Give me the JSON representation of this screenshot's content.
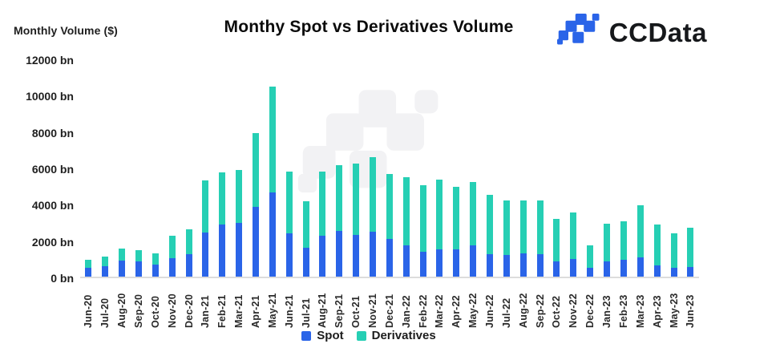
{
  "header": {
    "y_axis_title": "Monthly Volume ($)",
    "title": "Monthy Spot vs Derivatives Volume",
    "brand": "CCData"
  },
  "colors": {
    "spot_blue": "#2a64e8",
    "derivatives_teal": "#26cfb4",
    "axis_line": "#dcdcdc",
    "watermark_gray": "#f2f2f4",
    "logo_blue": "#2a64e8",
    "title_black": "#0b0b0b"
  },
  "legend": {
    "items": [
      {
        "label": "Spot",
        "color": "#2a64e8"
      },
      {
        "label": "Derivatives",
        "color": "#26cfb4"
      }
    ]
  },
  "chart_data": {
    "type": "bar",
    "stacked": true,
    "title": "Monthy Spot vs Derivatives Volume",
    "xlabel": "",
    "ylabel": "Monthly Volume ($)",
    "ylim": [
      0,
      12000
    ],
    "ytick_step": 2000,
    "yticks_top_down": [
      "12000 bn",
      "10000 bn",
      "8000 bn",
      "6000 bn",
      "4000 bn",
      "2000 bn",
      "0 bn"
    ],
    "grid": false,
    "legend_position": "bottom",
    "categories": [
      "Jun-20",
      "Jul-20",
      "Aug-20",
      "Sep-20",
      "Oct-20",
      "Nov-20",
      "Dec-20",
      "Jan-21",
      "Feb-21",
      "Mar-21",
      "Apr-21",
      "May-21",
      "Jun-21",
      "Jul-21",
      "Aug-21",
      "Sep-21",
      "Oct-21",
      "Nov-21",
      "Dec-21",
      "Jan-22",
      "Feb-22",
      "Mar-22",
      "Apr-22",
      "May-22",
      "Jun-22",
      "Jul-22",
      "Aug-22",
      "Sep-22",
      "Oct-22",
      "Nov-22",
      "Dec-22",
      "Jan-23",
      "Feb-23",
      "Mar-23",
      "Apr-23",
      "May-23",
      "Jun-23"
    ],
    "series": [
      {
        "name": "Spot",
        "color": "#2a64e8",
        "values": [
          500,
          570,
          880,
          840,
          660,
          1010,
          1230,
          2430,
          2870,
          2960,
          3840,
          4650,
          2380,
          1590,
          2250,
          2510,
          2290,
          2470,
          2070,
          1720,
          1370,
          1500,
          1500,
          1720,
          1230,
          1190,
          1280,
          1230,
          840,
          970,
          490,
          840,
          920,
          1060,
          620,
          490,
          530
        ]
      },
      {
        "name": "Derivatives",
        "color": "#26cfb4",
        "values": [
          430,
          530,
          670,
          620,
          620,
          1240,
          1370,
          2870,
          2870,
          2910,
          4060,
          5800,
          3400,
          2550,
          3530,
          3620,
          3930,
          4100,
          3580,
          3750,
          3660,
          3840,
          3440,
          3480,
          3270,
          3000,
          2910,
          2960,
          2340,
          2560,
          1210,
          2070,
          2120,
          2870,
          2250,
          1890,
          2160
        ]
      }
    ]
  }
}
